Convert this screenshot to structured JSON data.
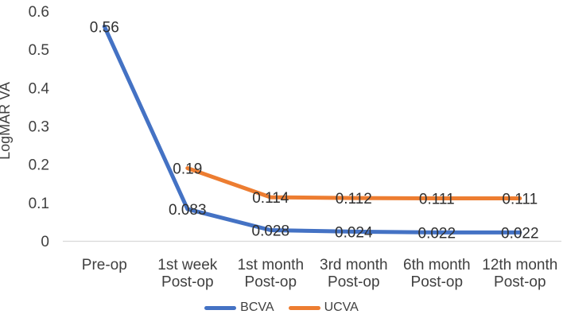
{
  "chart_data": {
    "type": "line",
    "title": "",
    "xlabel": "",
    "ylabel": "LogMAR VA",
    "categories": [
      [
        "Pre-op"
      ],
      [
        "1st week",
        "Post-op"
      ],
      [
        "1st month",
        "Post-op"
      ],
      [
        "3rd month",
        "Post-op"
      ],
      [
        "6th month",
        "Post-op"
      ],
      [
        "12th month",
        "Post-op"
      ]
    ],
    "ylim": [
      0,
      0.6
    ],
    "yticks": [
      {
        "value": 0,
        "label": "0"
      },
      {
        "value": 0.1,
        "label": "0.1"
      },
      {
        "value": 0.2,
        "label": "0.2"
      },
      {
        "value": 0.3,
        "label": "0.3"
      },
      {
        "value": 0.4,
        "label": "0.4"
      },
      {
        "value": 0.5,
        "label": "0.5"
      },
      {
        "value": 0.6,
        "label": "0.6"
      }
    ],
    "grid": false,
    "legend_position": "bottom",
    "axis_line_color": "#d9d9d9",
    "text_color": "#404040",
    "series": [
      {
        "name": "BCVA",
        "color": "#4472C4",
        "values": [
          0.56,
          0.083,
          0.028,
          0.024,
          0.022,
          0.022
        ],
        "point_labels": [
          "0.56",
          "0.083",
          "0.028",
          "0.024",
          "0.022",
          "0.022"
        ]
      },
      {
        "name": "UCVA",
        "color": "#ED7D31",
        "values": [
          null,
          0.19,
          0.114,
          0.112,
          0.111,
          0.111
        ],
        "point_labels": [
          null,
          "0.19",
          "0.114",
          "0.112",
          "0.111",
          "0.111"
        ]
      }
    ]
  }
}
